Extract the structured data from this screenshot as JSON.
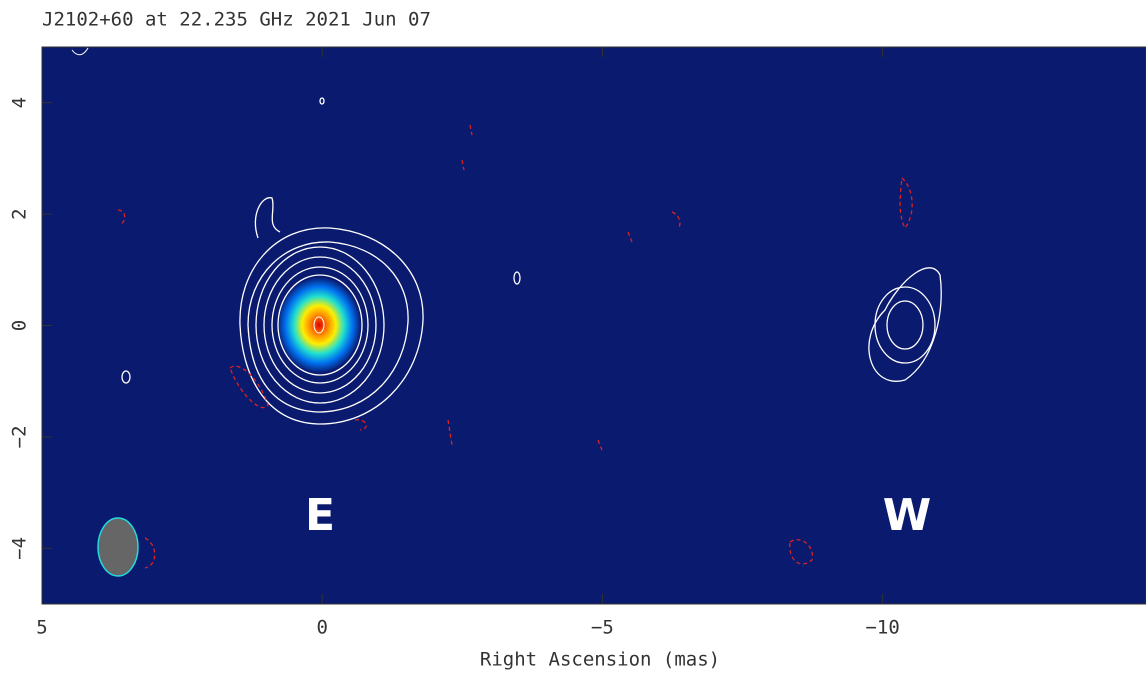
{
  "chart_data": {
    "type": "image",
    "title": "J2102+60 at 22.235 GHz 2021 Jun 07",
    "xlabel": "Right Ascension  (mas)",
    "xlim": [
      5,
      -14.7
    ],
    "ylim": [
      -5,
      5
    ],
    "xticks": [
      5,
      0,
      {
        "value": -5,
        "label": "−5"
      },
      {
        "value": -10,
        "label": "−10"
      }
    ],
    "yticks": [
      {
        "value": -4,
        "label": "−4"
      },
      {
        "value": -2,
        "label": "−2"
      },
      0,
      2,
      4
    ],
    "annotations": [
      "E",
      "W"
    ]
  }
}
